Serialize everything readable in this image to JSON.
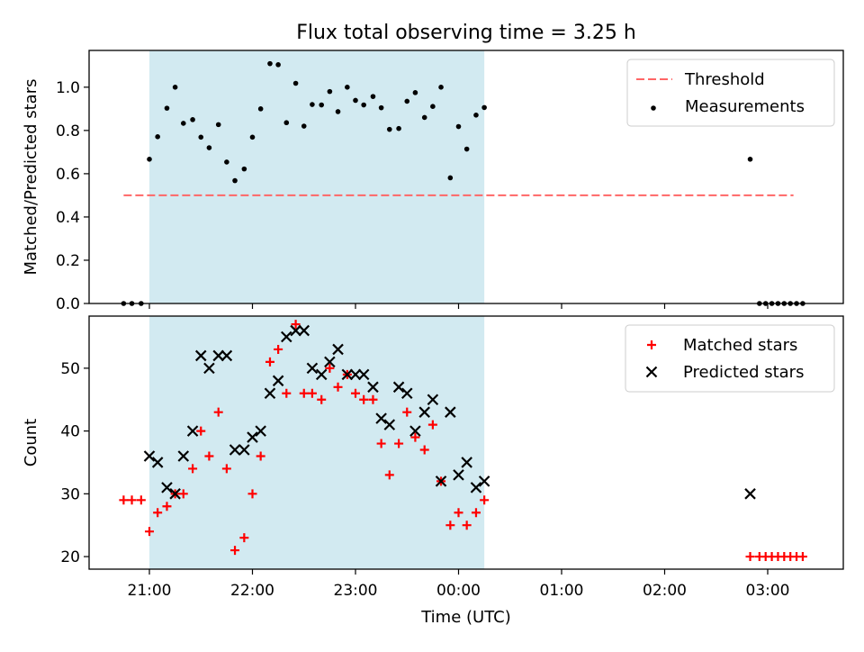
{
  "chart_data": {
    "title": "Flux total observing time = 3.25 h",
    "xlabel": "Time (UTC)",
    "x_ticks": [
      "21:00",
      "22:00",
      "23:00",
      "00:00",
      "01:00",
      "02:00",
      "03:00"
    ],
    "x_unit": "hours after 21:00 UTC",
    "shaded_interval": [
      0.0,
      3.25
    ],
    "shade_color": "#add8e6",
    "panels": [
      {
        "type": "scatter",
        "ylabel": "Matched/Predicted stars",
        "ylim": [
          0.0,
          1.17
        ],
        "y_ticks": [
          "0.0",
          "0.2",
          "0.4",
          "0.6",
          "0.8",
          "1.0"
        ],
        "legend_position": "upper right",
        "threshold": {
          "name": "Threshold",
          "value": 0.5,
          "x_range": [
            -0.25,
            6.25
          ],
          "color": "#ff6666",
          "style": "dashed"
        },
        "series": [
          {
            "name": "Measurements",
            "color": "#000000",
            "marker": "dot",
            "points": [
              [
                -0.25,
                0.0
              ],
              [
                -0.17,
                0.0
              ],
              [
                -0.08,
                0.0
              ],
              [
                0.0,
                0.667
              ],
              [
                0.08,
                0.771
              ],
              [
                0.17,
                0.903
              ],
              [
                0.25,
                1.0
              ],
              [
                0.33,
                0.833
              ],
              [
                0.42,
                0.85
              ],
              [
                0.5,
                0.769
              ],
              [
                0.58,
                0.72
              ],
              [
                0.67,
                0.827
              ],
              [
                0.75,
                0.654
              ],
              [
                0.83,
                0.568
              ],
              [
                0.92,
                0.622
              ],
              [
                1.0,
                0.769
              ],
              [
                1.08,
                0.9
              ],
              [
                1.17,
                1.109
              ],
              [
                1.25,
                1.104
              ],
              [
                1.33,
                0.836
              ],
              [
                1.42,
                1.018
              ],
              [
                1.5,
                0.82
              ],
              [
                1.58,
                0.92
              ],
              [
                1.67,
                0.918
              ],
              [
                1.75,
                0.98
              ],
              [
                1.83,
                0.887
              ],
              [
                1.92,
                1.0
              ],
              [
                2.0,
                0.939
              ],
              [
                2.08,
                0.918
              ],
              [
                2.17,
                0.957
              ],
              [
                2.25,
                0.905
              ],
              [
                2.33,
                0.805
              ],
              [
                2.42,
                0.809
              ],
              [
                2.5,
                0.935
              ],
              [
                2.58,
                0.975
              ],
              [
                2.67,
                0.86
              ],
              [
                2.75,
                0.911
              ],
              [
                2.83,
                1.0
              ],
              [
                2.92,
                0.581
              ],
              [
                3.0,
                0.818
              ],
              [
                3.08,
                0.714
              ],
              [
                3.17,
                0.871
              ],
              [
                3.25,
                0.906
              ],
              [
                5.83,
                0.667
              ],
              [
                5.92,
                0.0
              ],
              [
                5.98,
                0.0
              ],
              [
                6.04,
                0.0
              ],
              [
                6.1,
                0.0
              ],
              [
                6.16,
                0.0
              ],
              [
                6.22,
                0.0
              ],
              [
                6.28,
                0.0
              ],
              [
                6.34,
                0.0
              ]
            ]
          }
        ]
      },
      {
        "type": "scatter",
        "ylabel": "Count",
        "ylim": [
          18,
          58.3
        ],
        "y_ticks": [
          "20",
          "30",
          "40",
          "50"
        ],
        "legend_position": "upper right",
        "series": [
          {
            "name": "Matched stars",
            "color": "#ff0000",
            "marker": "plus",
            "points": [
              [
                -0.25,
                29
              ],
              [
                -0.17,
                29
              ],
              [
                -0.08,
                29
              ],
              [
                0.0,
                24
              ],
              [
                0.08,
                27
              ],
              [
                0.17,
                28
              ],
              [
                0.25,
                30
              ],
              [
                0.33,
                30
              ],
              [
                0.42,
                34
              ],
              [
                0.5,
                40
              ],
              [
                0.58,
                36
              ],
              [
                0.67,
                43
              ],
              [
                0.75,
                34
              ],
              [
                0.83,
                21
              ],
              [
                0.92,
                23
              ],
              [
                1.0,
                30
              ],
              [
                1.08,
                36
              ],
              [
                1.17,
                51
              ],
              [
                1.25,
                53
              ],
              [
                1.33,
                46
              ],
              [
                1.42,
                57
              ],
              [
                1.5,
                46
              ],
              [
                1.58,
                46
              ],
              [
                1.67,
                45
              ],
              [
                1.75,
                50
              ],
              [
                1.83,
                47
              ],
              [
                1.92,
                49
              ],
              [
                2.0,
                46
              ],
              [
                2.08,
                45
              ],
              [
                2.17,
                45
              ],
              [
                2.25,
                38
              ],
              [
                2.33,
                33
              ],
              [
                2.42,
                38
              ],
              [
                2.5,
                43
              ],
              [
                2.58,
                39
              ],
              [
                2.67,
                37
              ],
              [
                2.75,
                41
              ],
              [
                2.83,
                32
              ],
              [
                2.92,
                25
              ],
              [
                3.0,
                27
              ],
              [
                3.08,
                25
              ],
              [
                3.17,
                27
              ],
              [
                3.25,
                29
              ],
              [
                5.83,
                20
              ],
              [
                5.92,
                20
              ],
              [
                5.98,
                20
              ],
              [
                6.04,
                20
              ],
              [
                6.1,
                20
              ],
              [
                6.16,
                20
              ],
              [
                6.22,
                20
              ],
              [
                6.28,
                20
              ],
              [
                6.34,
                20
              ]
            ]
          },
          {
            "name": "Predicted stars",
            "color": "#000000",
            "marker": "x",
            "points": [
              [
                0.0,
                36
              ],
              [
                0.08,
                35
              ],
              [
                0.17,
                31
              ],
              [
                0.25,
                30
              ],
              [
                0.33,
                36
              ],
              [
                0.42,
                40
              ],
              [
                0.5,
                52
              ],
              [
                0.58,
                50
              ],
              [
                0.67,
                52
              ],
              [
                0.75,
                52
              ],
              [
                0.83,
                37
              ],
              [
                0.92,
                37
              ],
              [
                1.0,
                39
              ],
              [
                1.08,
                40
              ],
              [
                1.17,
                46
              ],
              [
                1.25,
                48
              ],
              [
                1.33,
                55
              ],
              [
                1.42,
                56
              ],
              [
                1.5,
                56
              ],
              [
                1.58,
                50
              ],
              [
                1.67,
                49
              ],
              [
                1.75,
                51
              ],
              [
                1.83,
                53
              ],
              [
                1.92,
                49
              ],
              [
                2.0,
                49
              ],
              [
                2.08,
                49
              ],
              [
                2.17,
                47
              ],
              [
                2.25,
                42
              ],
              [
                2.33,
                41
              ],
              [
                2.42,
                47
              ],
              [
                2.5,
                46
              ],
              [
                2.58,
                40
              ],
              [
                2.67,
                43
              ],
              [
                2.75,
                45
              ],
              [
                2.83,
                32
              ],
              [
                2.92,
                43
              ],
              [
                3.0,
                33
              ],
              [
                3.08,
                35
              ],
              [
                3.17,
                31
              ],
              [
                3.25,
                32
              ],
              [
                5.83,
                30
              ]
            ]
          }
        ]
      }
    ]
  }
}
